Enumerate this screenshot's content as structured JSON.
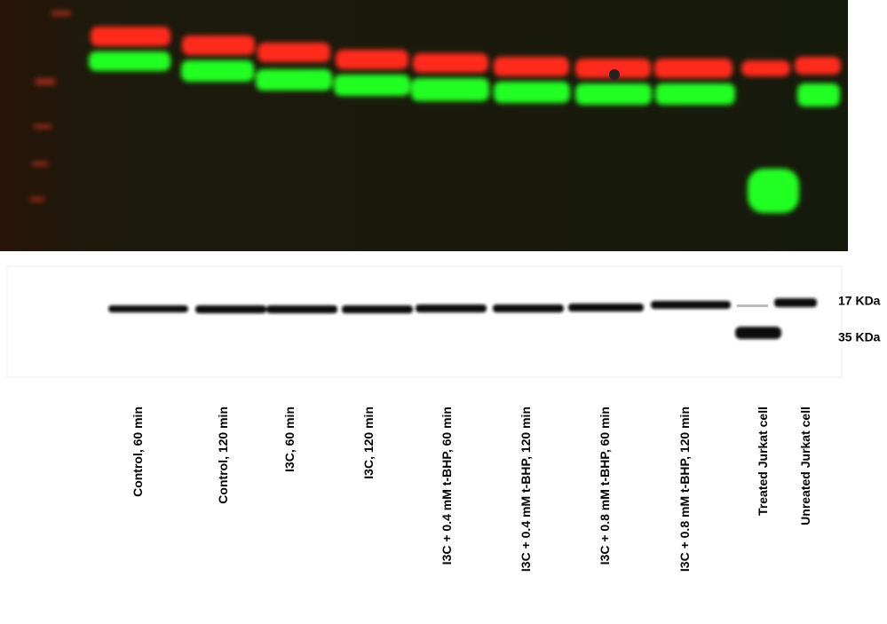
{
  "lanes": [
    "Control, 60 min",
    "Control, 120 min",
    "I3C, 60 min",
    "I3C, 120 min",
    "I3C + 0.4 mM t-BHP, 60 min",
    "I3C + 0.4 mM t-BHP, 120 min",
    "I3C + 0.8 mM t-BHP, 60 min",
    "I3C + 0.8 mM t-BHP, 120 min",
    "Treated Jurkat cell",
    "Unreated Jurkat cell"
  ],
  "markers": [
    "17 KDa",
    "35 KDa"
  ]
}
